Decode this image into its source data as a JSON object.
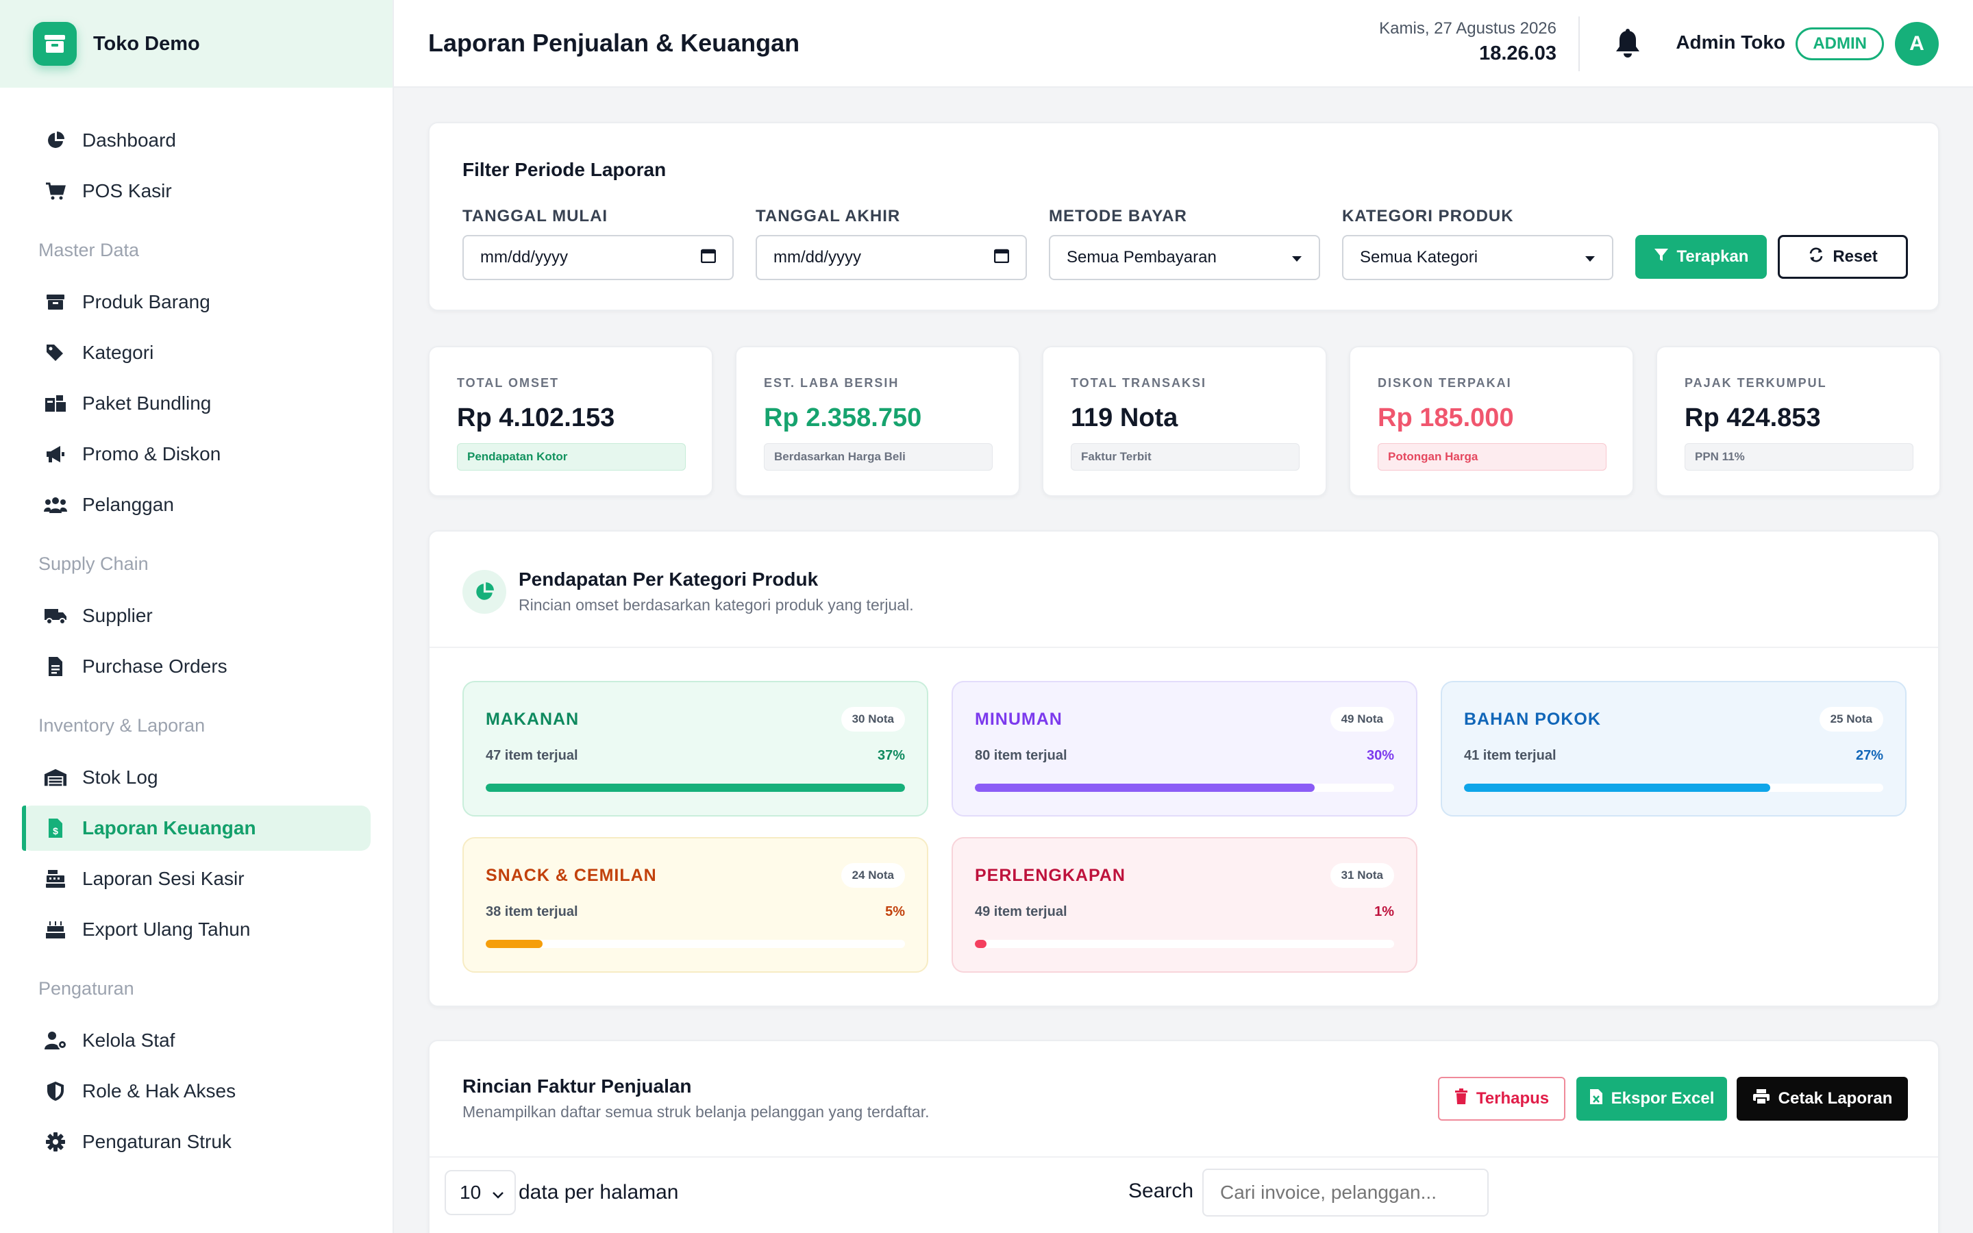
{
  "brand": {
    "name": "Toko Demo"
  },
  "sidebar": {
    "main": [
      {
        "label": "Dashboard",
        "icon": "pie-chart-icon"
      },
      {
        "label": "POS Kasir",
        "icon": "cart-icon"
      }
    ],
    "sections": [
      {
        "title": "Master Data",
        "items": [
          {
            "label": "Produk Barang",
            "icon": "box-icon"
          },
          {
            "label": "Kategori",
            "icon": "tags-icon"
          },
          {
            "label": "Paket Bundling",
            "icon": "bundle-icon"
          },
          {
            "label": "Promo & Diskon",
            "icon": "megaphone-icon"
          },
          {
            "label": "Pelanggan",
            "icon": "users-icon"
          }
        ]
      },
      {
        "title": "Supply Chain",
        "items": [
          {
            "label": "Supplier",
            "icon": "truck-icon"
          },
          {
            "label": "Purchase Orders",
            "icon": "file-icon"
          }
        ]
      },
      {
        "title": "Inventory & Laporan",
        "items": [
          {
            "label": "Stok Log",
            "icon": "warehouse-icon"
          },
          {
            "label": "Laporan Keuangan",
            "icon": "invoice-dollar-icon",
            "active": true
          },
          {
            "label": "Laporan Sesi Kasir",
            "icon": "cash-register-icon"
          },
          {
            "label": "Export Ulang Tahun",
            "icon": "birthday-cake-icon"
          }
        ]
      },
      {
        "title": "Pengaturan",
        "items": [
          {
            "label": "Kelola Staf",
            "icon": "user-cog-icon"
          },
          {
            "label": "Role & Hak Akses",
            "icon": "shield-icon"
          },
          {
            "label": "Pengaturan Struk",
            "icon": "gear-icon"
          }
        ]
      }
    ]
  },
  "header": {
    "title": "Laporan Penjualan & Keuangan",
    "date": "Kamis, 27 Agustus 2026",
    "time": "18.26.03",
    "user_name": "Admin Toko",
    "role": "ADMIN",
    "avatar_initial": "A"
  },
  "filter": {
    "title": "Filter Periode Laporan",
    "start_label": "TANGGAL MULAI",
    "start_value": "mm/dd/yyyy",
    "end_label": "TANGGAL AKHIR",
    "end_value": "mm/dd/yyyy",
    "method_label": "METODE BAYAR",
    "method_value": "Semua Pembayaran",
    "category_label": "KATEGORI PRODUK",
    "category_value": "Semua Kategori",
    "apply_label": "Terapkan",
    "reset_label": "Reset"
  },
  "stats": [
    {
      "label": "TOTAL OMSET",
      "value": "Rp 4.102.153",
      "tag": "Pendapatan Kotor",
      "value_color": "#111827",
      "tag_bg": "#e6f7ee",
      "tag_color": "#13935f",
      "tag_border": "#c7ecd8"
    },
    {
      "label": "EST. LABA BERSIH",
      "value": "Rp 2.358.750",
      "tag": "Berdasarkan Harga Beli",
      "value_color": "#16a36e",
      "tag_bg": "#f3f4f6",
      "tag_color": "#6b7280",
      "tag_border": "#e5e7eb"
    },
    {
      "label": "TOTAL TRANSAKSI",
      "value": "119 Nota",
      "tag": "Faktur Terbit",
      "value_color": "#111827",
      "tag_bg": "#f3f4f6",
      "tag_color": "#6b7280",
      "tag_border": "#e5e7eb"
    },
    {
      "label": "DISKON TERPAKAI",
      "value": "Rp 185.000",
      "tag": "Potongan Harga",
      "value_color": "#f0566e",
      "tag_bg": "#fdecef",
      "tag_color": "#e5485f",
      "tag_border": "#f8c7cf"
    },
    {
      "label": "PAJAK TERKUMPUL",
      "value": "Rp 424.853",
      "tag": "PPN 11%",
      "value_color": "#111827",
      "tag_bg": "#f3f4f6",
      "tag_color": "#6b7280",
      "tag_border": "#e5e7eb"
    }
  ],
  "categories_panel": {
    "title": "Pendapatan Per Kategori Produk",
    "subtitle": "Rincian omset berdasarkan kategori produk yang terjual.",
    "items": [
      {
        "name": "MAKANAN",
        "nota": "30 Nota",
        "items_sold": "47 item terjual",
        "pct_label": "37%",
        "progress": 1.0,
        "color": "#0f8a5f",
        "bar": "#16b07a",
        "bg": "#ecfaf3",
        "border": "#c9eedb"
      },
      {
        "name": "MINUMAN",
        "nota": "49 Nota",
        "items_sold": "80 item terjual",
        "pct_label": "30%",
        "progress": 0.81,
        "color": "#7c3aed",
        "bar": "#8b5cf6",
        "bg": "#f5f3ff",
        "border": "#e3dcfb"
      },
      {
        "name": "BAHAN POKOK",
        "nota": "25 Nota",
        "items_sold": "41 item terjual",
        "pct_label": "27%",
        "progress": 0.73,
        "color": "#1166b8",
        "bar": "#0ea5e9",
        "bg": "#eef6fd",
        "border": "#d3e6f7"
      },
      {
        "name": "SNACK & CEMILAN",
        "nota": "24 Nota",
        "items_sold": "38 item terjual",
        "pct_label": "5%",
        "progress": 0.135,
        "color": "#c2410c",
        "bar": "#f59e0b",
        "bg": "#fffbea",
        "border": "#f7ecc4"
      },
      {
        "name": "PERLENGKAPAN",
        "nota": "31 Nota",
        "items_sold": "49 item terjual",
        "pct_label": "1%",
        "progress": 0.027,
        "color": "#be123c",
        "bar": "#f43f5e",
        "bg": "#fef1f3",
        "border": "#f8d4da"
      }
    ]
  },
  "invoices": {
    "title": "Rincian Faktur Penjualan",
    "subtitle": "Menampilkan daftar semua struk belanja pelanggan yang terdaftar.",
    "deleted_label": "Terhapus",
    "excel_label": "Ekspor Excel",
    "print_label": "Cetak Laporan",
    "per_page_value": "10",
    "per_page_label": "data per halaman",
    "search_label": "Search",
    "search_placeholder": "Cari invoice, pelanggan..."
  }
}
